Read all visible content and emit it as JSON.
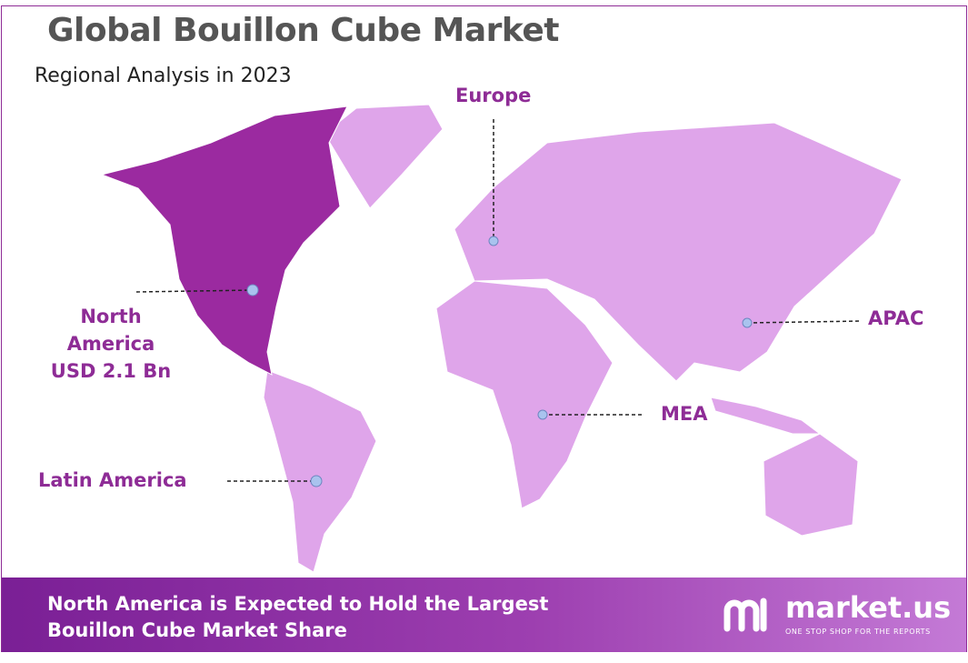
{
  "header": {
    "title": "Global Bouillon Cube Market",
    "subtitle": "Regional Analysis in 2023"
  },
  "regions": [
    {
      "label": "North America",
      "value": "USD 2.1 Bn"
    },
    {
      "label": "Europe"
    },
    {
      "label": "APAC"
    },
    {
      "label": "MEA"
    },
    {
      "label": "Latin America"
    }
  ],
  "footer": {
    "lines": [
      "North America is Expected to Hold the Largest",
      "Bouillon Cube Market Share"
    ]
  },
  "logo": {
    "name": "market.us",
    "tagline": "ONE STOP SHOP FOR THE REPORTS"
  }
}
